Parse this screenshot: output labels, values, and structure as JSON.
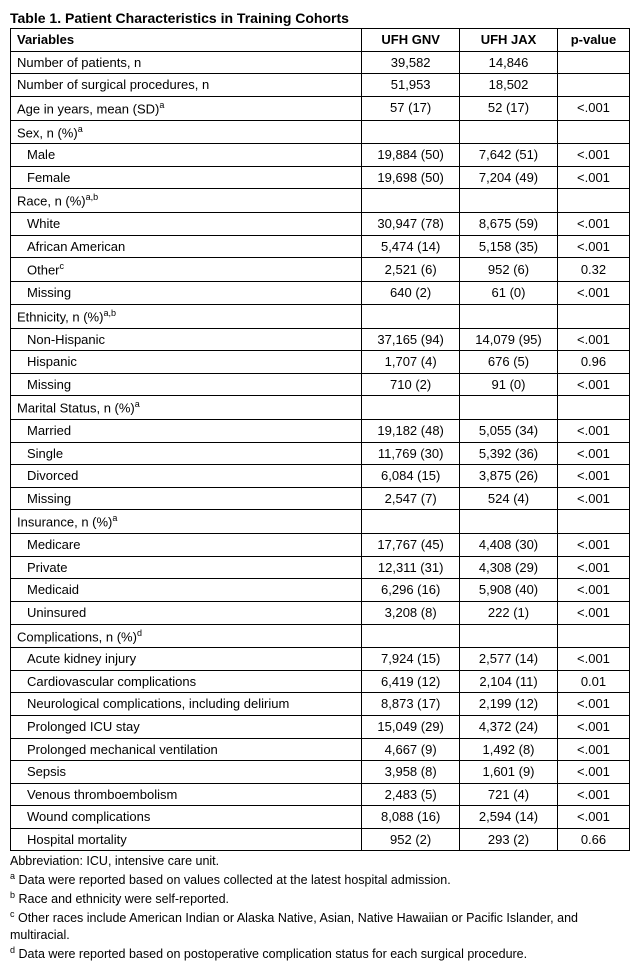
{
  "title": "Table 1. Patient Characteristics in Training Cohorts",
  "headers": {
    "c1": "Variables",
    "c2": "UFH GNV",
    "c3": "UFH JAX",
    "c4": "p-value"
  },
  "rows": [
    {
      "label": "Number of patients, n",
      "gnv": "39,582",
      "jax": "14,846",
      "p": ""
    },
    {
      "label": "Number of surgical procedures, n",
      "gnv": "51,953",
      "jax": "18,502",
      "p": ""
    },
    {
      "label": "Age in years, mean (SD)",
      "sup": "a",
      "gnv": "57 (17)",
      "jax": "52 (17)",
      "p": "<.001"
    },
    {
      "label": "Sex, n (%)",
      "sup": "a",
      "gnv": "",
      "jax": "",
      "p": ""
    },
    {
      "label": "Male",
      "indent": true,
      "gnv": "19,884 (50)",
      "jax": "7,642 (51)",
      "p": "<.001"
    },
    {
      "label": "Female",
      "indent": true,
      "gnv": "19,698 (50)",
      "jax": "7,204 (49)",
      "p": "<.001"
    },
    {
      "label": "Race, n (%)",
      "sup": "a,b",
      "gnv": "",
      "jax": "",
      "p": ""
    },
    {
      "label": "White",
      "indent": true,
      "gnv": "30,947 (78)",
      "jax": "8,675 (59)",
      "p": "<.001"
    },
    {
      "label": "African American",
      "indent": true,
      "gnv": "5,474 (14)",
      "jax": "5,158 (35)",
      "p": "<.001"
    },
    {
      "label": "Other",
      "sup": "c",
      "indent": true,
      "gnv": "2,521 (6)",
      "jax": "952 (6)",
      "p": "0.32"
    },
    {
      "label": "Missing",
      "indent": true,
      "gnv": "640 (2)",
      "jax": "61 (0)",
      "p": "<.001"
    },
    {
      "label": "Ethnicity, n (%)",
      "sup": "a,b",
      "gnv": "",
      "jax": "",
      "p": ""
    },
    {
      "label": "Non-Hispanic",
      "indent": true,
      "gnv": "37,165 (94)",
      "jax": "14,079 (95)",
      "p": "<.001"
    },
    {
      "label": "Hispanic",
      "indent": true,
      "gnv": "1,707 (4)",
      "jax": "676 (5)",
      "p": "0.96"
    },
    {
      "label": "Missing",
      "indent": true,
      "gnv": "710 (2)",
      "jax": "91 (0)",
      "p": "<.001"
    },
    {
      "label": "Marital Status, n (%)",
      "sup": "a",
      "gnv": "",
      "jax": "",
      "p": ""
    },
    {
      "label": "Married",
      "indent": true,
      "gnv": "19,182 (48)",
      "jax": "5,055 (34)",
      "p": "<.001"
    },
    {
      "label": "Single",
      "indent": true,
      "gnv": "11,769 (30)",
      "jax": "5,392 (36)",
      "p": "<.001"
    },
    {
      "label": "Divorced",
      "indent": true,
      "gnv": "6,084 (15)",
      "jax": "3,875 (26)",
      "p": "<.001"
    },
    {
      "label": "Missing",
      "indent": true,
      "gnv": "2,547 (7)",
      "jax": "524 (4)",
      "p": "<.001"
    },
    {
      "label": "Insurance, n (%)",
      "sup": "a",
      "gnv": "",
      "jax": "",
      "p": ""
    },
    {
      "label": "Medicare",
      "indent": true,
      "gnv": "17,767 (45)",
      "jax": "4,408 (30)",
      "p": "<.001"
    },
    {
      "label": "Private",
      "indent": true,
      "gnv": "12,311 (31)",
      "jax": "4,308 (29)",
      "p": "<.001"
    },
    {
      "label": "Medicaid",
      "indent": true,
      "gnv": "6,296 (16)",
      "jax": "5,908 (40)",
      "p": "<.001"
    },
    {
      "label": "Uninsured",
      "indent": true,
      "gnv": "3,208 (8)",
      "jax": "222 (1)",
      "p": "<.001"
    },
    {
      "label": "Complications, n (%)",
      "sup": "d",
      "gnv": "",
      "jax": "",
      "p": ""
    },
    {
      "label": "Acute kidney injury",
      "indent": true,
      "gnv": "7,924 (15)",
      "jax": "2,577 (14)",
      "p": "<.001"
    },
    {
      "label": "Cardiovascular complications",
      "indent": true,
      "gnv": "6,419 (12)",
      "jax": "2,104 (11)",
      "p": "0.01"
    },
    {
      "label": "Neurological complications, including delirium",
      "indent": true,
      "gnv": "8,873 (17)",
      "jax": "2,199 (12)",
      "p": "<.001"
    },
    {
      "label": "Prolonged ICU stay",
      "indent": true,
      "gnv": "15,049 (29)",
      "jax": "4,372 (24)",
      "p": "<.001"
    },
    {
      "label": "Prolonged mechanical ventilation",
      "indent": true,
      "gnv": "4,667 (9)",
      "jax": "1,492 (8)",
      "p": "<.001"
    },
    {
      "label": "Sepsis",
      "indent": true,
      "gnv": "3,958 (8)",
      "jax": "1,601 (9)",
      "p": "<.001"
    },
    {
      "label": "Venous thromboembolism",
      "indent": true,
      "gnv": "2,483 (5)",
      "jax": "721 (4)",
      "p": "<.001"
    },
    {
      "label": "Wound complications",
      "indent": true,
      "gnv": "8,088 (16)",
      "jax": "2,594 (14)",
      "p": "<.001"
    },
    {
      "label": "Hospital mortality",
      "indent": true,
      "gnv": "952 (2)",
      "jax": "293 (2)",
      "p": "0.66"
    }
  ],
  "footnotes": {
    "abbrev": "Abbreviation: ICU, intensive care unit.",
    "a": " Data were reported based on values collected at the latest hospital admission.",
    "b": " Race and ethnicity were self-reported.",
    "c": " Other races include American Indian or Alaska Native, Asian, Native Hawaiian or Pacific Islander, and multiracial.",
    "d": " Data were reported based on postoperative complication status for each surgical procedure."
  }
}
